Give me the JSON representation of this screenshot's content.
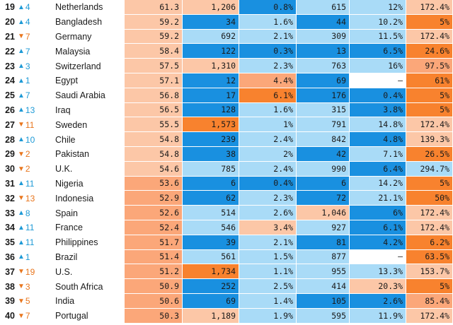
{
  "colors": {
    "up_arrow": "#1e9ad6",
    "down_arrow": "#e8761e",
    "blue_dark": "#1990e0",
    "blue_light": "#a9dbf7",
    "orange_light": "#fcc7a7",
    "orange_mid": "#fba779",
    "orange_dark": "#f8822e",
    "white": "#ffffff"
  },
  "rows": [
    {
      "rank": "19",
      "dir": "up",
      "change": "4",
      "country": "Netherlands",
      "cells": [
        [
          "61.3",
          "orange_light"
        ],
        [
          "1,206",
          "orange_light"
        ],
        [
          "0.8%",
          "blue_dark"
        ],
        [
          "615",
          "blue_light"
        ],
        [
          "12%",
          "blue_light"
        ],
        [
          "172.4%",
          "orange_light"
        ]
      ]
    },
    {
      "rank": "20",
      "dir": "up",
      "change": "4",
      "country": "Bangladesh",
      "cells": [
        [
          "59.2",
          "orange_light"
        ],
        [
          "34",
          "blue_dark"
        ],
        [
          "1.6%",
          "blue_light"
        ],
        [
          "44",
          "blue_dark"
        ],
        [
          "10.2%",
          "blue_light"
        ],
        [
          "5%",
          "orange_dark"
        ]
      ]
    },
    {
      "rank": "21",
      "dir": "down",
      "change": "7",
      "country": "Germany",
      "cells": [
        [
          "59.2",
          "orange_light"
        ],
        [
          "692",
          "blue_light"
        ],
        [
          "2.1%",
          "blue_light"
        ],
        [
          "309",
          "blue_light"
        ],
        [
          "11.5%",
          "blue_light"
        ],
        [
          "172.4%",
          "orange_light"
        ]
      ]
    },
    {
      "rank": "22",
      "dir": "up",
      "change": "7",
      "country": "Malaysia",
      "cells": [
        [
          "58.4",
          "orange_light"
        ],
        [
          "122",
          "blue_dark"
        ],
        [
          "0.3%",
          "blue_dark"
        ],
        [
          "13",
          "blue_dark"
        ],
        [
          "6.5%",
          "blue_dark"
        ],
        [
          "24.6%",
          "orange_dark"
        ]
      ]
    },
    {
      "rank": "23",
      "dir": "up",
      "change": "3",
      "country": "Switzerland",
      "cells": [
        [
          "57.5",
          "orange_light"
        ],
        [
          "1,310",
          "orange_light"
        ],
        [
          "2.3%",
          "blue_light"
        ],
        [
          "763",
          "blue_light"
        ],
        [
          "16%",
          "blue_light"
        ],
        [
          "97.5%",
          "orange_mid"
        ]
      ]
    },
    {
      "rank": "24",
      "dir": "up",
      "change": "1",
      "country": "Egypt",
      "cells": [
        [
          "57.1",
          "orange_light"
        ],
        [
          "12",
          "blue_dark"
        ],
        [
          "4.4%",
          "orange_mid"
        ],
        [
          "69",
          "blue_dark"
        ],
        [
          "–",
          "white"
        ],
        [
          "61%",
          "orange_dark"
        ]
      ]
    },
    {
      "rank": "25",
      "dir": "up",
      "change": "7",
      "country": "Saudi Arabia",
      "cells": [
        [
          "56.8",
          "orange_light"
        ],
        [
          "17",
          "blue_dark"
        ],
        [
          "6.1%",
          "orange_dark"
        ],
        [
          "176",
          "blue_dark"
        ],
        [
          "0.4%",
          "blue_dark"
        ],
        [
          "5%",
          "orange_dark"
        ]
      ]
    },
    {
      "rank": "26",
      "dir": "up",
      "change": "13",
      "country": "Iraq",
      "cells": [
        [
          "56.5",
          "orange_light"
        ],
        [
          "128",
          "blue_dark"
        ],
        [
          "1.6%",
          "blue_light"
        ],
        [
          "315",
          "blue_light"
        ],
        [
          "3.8%",
          "blue_dark"
        ],
        [
          "5%",
          "orange_dark"
        ]
      ]
    },
    {
      "rank": "27",
      "dir": "down",
      "change": "11",
      "country": "Sweden",
      "cells": [
        [
          "55.5",
          "orange_light"
        ],
        [
          "1,573",
          "orange_dark"
        ],
        [
          "1%",
          "blue_light"
        ],
        [
          "791",
          "blue_light"
        ],
        [
          "14.8%",
          "blue_light"
        ],
        [
          "172.4%",
          "orange_light"
        ]
      ]
    },
    {
      "rank": "28",
      "dir": "up",
      "change": "10",
      "country": "Chile",
      "cells": [
        [
          "54.8",
          "orange_light"
        ],
        [
          "239",
          "blue_dark"
        ],
        [
          "2.4%",
          "blue_light"
        ],
        [
          "842",
          "blue_light"
        ],
        [
          "4.8%",
          "blue_dark"
        ],
        [
          "139.3%",
          "orange_light"
        ]
      ]
    },
    {
      "rank": "29",
      "dir": "down",
      "change": "2",
      "country": "Pakistan",
      "cells": [
        [
          "54.8",
          "orange_light"
        ],
        [
          "38",
          "blue_dark"
        ],
        [
          "2%",
          "blue_light"
        ],
        [
          "42",
          "blue_dark"
        ],
        [
          "7.1%",
          "blue_light"
        ],
        [
          "26.5%",
          "orange_dark"
        ]
      ]
    },
    {
      "rank": "30",
      "dir": "down",
      "change": "2",
      "country": "U.K.",
      "cells": [
        [
          "54.6",
          "orange_light"
        ],
        [
          "785",
          "blue_light"
        ],
        [
          "2.4%",
          "blue_light"
        ],
        [
          "990",
          "blue_light"
        ],
        [
          "6.4%",
          "blue_dark"
        ],
        [
          "294.7%",
          "blue_light"
        ]
      ]
    },
    {
      "rank": "31",
      "dir": "up",
      "change": "11",
      "country": "Nigeria",
      "cells": [
        [
          "53.6",
          "orange_mid"
        ],
        [
          "6",
          "blue_dark"
        ],
        [
          "0.4%",
          "blue_dark"
        ],
        [
          "6",
          "blue_dark"
        ],
        [
          "14.2%",
          "blue_light"
        ],
        [
          "5%",
          "orange_dark"
        ]
      ]
    },
    {
      "rank": "32",
      "dir": "down",
      "change": "13",
      "country": "Indonesia",
      "cells": [
        [
          "52.9",
          "orange_mid"
        ],
        [
          "62",
          "blue_dark"
        ],
        [
          "2.3%",
          "blue_light"
        ],
        [
          "72",
          "blue_dark"
        ],
        [
          "21.1%",
          "blue_light"
        ],
        [
          "50%",
          "orange_dark"
        ]
      ]
    },
    {
      "rank": "33",
      "dir": "up",
      "change": "8",
      "country": "Spain",
      "cells": [
        [
          "52.6",
          "orange_mid"
        ],
        [
          "514",
          "blue_light"
        ],
        [
          "2.6%",
          "blue_light"
        ],
        [
          "1,046",
          "orange_light"
        ],
        [
          "6%",
          "blue_dark"
        ],
        [
          "172.4%",
          "orange_light"
        ]
      ]
    },
    {
      "rank": "34",
      "dir": "up",
      "change": "11",
      "country": "France",
      "cells": [
        [
          "52.4",
          "orange_mid"
        ],
        [
          "546",
          "blue_light"
        ],
        [
          "3.4%",
          "orange_light"
        ],
        [
          "927",
          "blue_light"
        ],
        [
          "6.1%",
          "blue_dark"
        ],
        [
          "172.4%",
          "orange_light"
        ]
      ]
    },
    {
      "rank": "35",
      "dir": "up",
      "change": "11",
      "country": "Philippines",
      "cells": [
        [
          "51.7",
          "orange_mid"
        ],
        [
          "39",
          "blue_dark"
        ],
        [
          "2.1%",
          "blue_light"
        ],
        [
          "81",
          "blue_dark"
        ],
        [
          "4.2%",
          "blue_dark"
        ],
        [
          "6.2%",
          "orange_dark"
        ]
      ]
    },
    {
      "rank": "36",
      "dir": "up",
      "change": "1",
      "country": "Brazil",
      "cells": [
        [
          "51.4",
          "orange_mid"
        ],
        [
          "561",
          "blue_light"
        ],
        [
          "1.5%",
          "blue_light"
        ],
        [
          "877",
          "blue_light"
        ],
        [
          "–",
          "white"
        ],
        [
          "63.5%",
          "orange_dark"
        ]
      ]
    },
    {
      "rank": "37",
      "dir": "down",
      "change": "19",
      "country": "U.S.",
      "cells": [
        [
          "51.2",
          "orange_mid"
        ],
        [
          "1,734",
          "orange_dark"
        ],
        [
          "1.1%",
          "blue_light"
        ],
        [
          "955",
          "blue_light"
        ],
        [
          "13.3%",
          "blue_light"
        ],
        [
          "153.7%",
          "orange_light"
        ]
      ]
    },
    {
      "rank": "38",
      "dir": "down",
      "change": "3",
      "country": "South Africa",
      "cells": [
        [
          "50.9",
          "orange_mid"
        ],
        [
          "252",
          "blue_dark"
        ],
        [
          "2.5%",
          "blue_light"
        ],
        [
          "414",
          "blue_light"
        ],
        [
          "20.3%",
          "orange_light"
        ],
        [
          "5%",
          "orange_dark"
        ]
      ]
    },
    {
      "rank": "39",
      "dir": "down",
      "change": "5",
      "country": "India",
      "cells": [
        [
          "50.6",
          "orange_mid"
        ],
        [
          "69",
          "blue_dark"
        ],
        [
          "1.4%",
          "blue_light"
        ],
        [
          "105",
          "blue_dark"
        ],
        [
          "2.6%",
          "blue_dark"
        ],
        [
          "85.4%",
          "orange_mid"
        ]
      ]
    },
    {
      "rank": "40",
      "dir": "down",
      "change": "7",
      "country": "Portugal",
      "cells": [
        [
          "50.3",
          "orange_mid"
        ],
        [
          "1,189",
          "orange_light"
        ],
        [
          "1.9%",
          "blue_light"
        ],
        [
          "595",
          "blue_light"
        ],
        [
          "11.9%",
          "blue_light"
        ],
        [
          "172.4%",
          "orange_light"
        ]
      ]
    }
  ]
}
